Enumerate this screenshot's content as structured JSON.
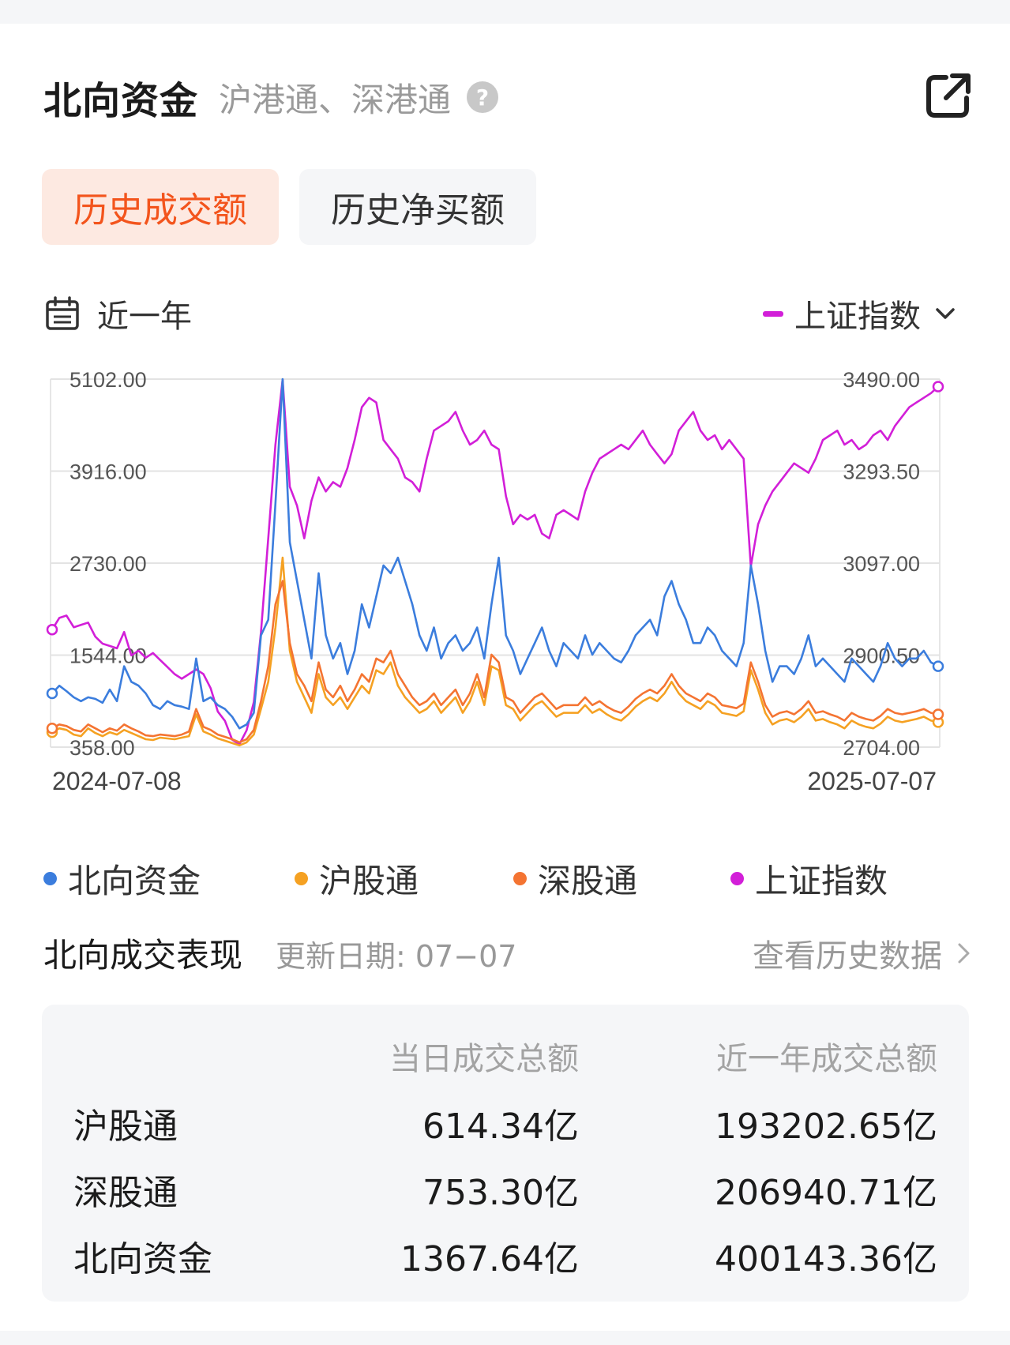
{
  "header": {
    "title": "北向资金",
    "subtitle": "沪港通、深港通",
    "help_icon": "question-circle-icon",
    "share_icon": "external-link-icon"
  },
  "tabs": [
    {
      "label": "历史成交额",
      "active": true
    },
    {
      "label": "历史净买额",
      "active": false
    }
  ],
  "filters": {
    "range_icon": "calendar-icon",
    "range_label": "近一年",
    "index_label": "上证指数",
    "index_color": "#d21fd8"
  },
  "chart_data": {
    "type": "line",
    "x_start_label": "2024-07-08",
    "x_end_label": "2025-07-07",
    "left_axis": {
      "ticks": [
        "5102.00",
        "3916.00",
        "2730.00",
        "1544.00",
        "358.00"
      ],
      "ylim": [
        358,
        5102
      ]
    },
    "right_axis": {
      "ticks": [
        "3490.00",
        "3293.50",
        "3097.00",
        "2900.50",
        "2704.00"
      ],
      "ylim": [
        2704,
        3490
      ]
    },
    "grid": true,
    "series": [
      {
        "name": "北向资金",
        "color": "#3b7ddd",
        "axis": "left",
        "values": [
          1050,
          1150,
          1080,
          1000,
          950,
          1000,
          980,
          930,
          1100,
          950,
          1400,
          1200,
          1150,
          1050,
          900,
          850,
          950,
          900,
          880,
          850,
          1500,
          950,
          1000,
          900,
          850,
          750,
          600,
          650,
          800,
          1800,
          2000,
          3500,
          5102,
          3000,
          2500,
          2000,
          1500,
          2600,
          1800,
          1500,
          1700,
          1300,
          1600,
          2200,
          1900,
          2300,
          2700,
          2600,
          2800,
          2500,
          2200,
          1800,
          1600,
          1900,
          1500,
          1700,
          1800,
          1600,
          1700,
          1900,
          1500,
          2200,
          2800,
          1800,
          1600,
          1300,
          1500,
          1700,
          1900,
          1600,
          1400,
          1700,
          1600,
          1500,
          1800,
          1550,
          1700,
          1600,
          1500,
          1450,
          1600,
          1800,
          1900,
          2000,
          1800,
          2300,
          2500,
          2200,
          2000,
          1700,
          1700,
          1900,
          1800,
          1600,
          1500,
          1400,
          1700,
          2700,
          2200,
          1600,
          1200,
          1400,
          1400,
          1300,
          1500,
          1800,
          1400,
          1500,
          1400,
          1300,
          1200,
          1500,
          1400,
          1300,
          1200,
          1400,
          1700,
          1500,
          1400,
          1500,
          1500,
          1600,
          1450,
          1400
        ]
      },
      {
        "name": "沪股通",
        "color": "#f5a122",
        "axis": "left",
        "values": [
          550,
          600,
          580,
          520,
          500,
          600,
          540,
          500,
          550,
          520,
          580,
          540,
          500,
          460,
          450,
          480,
          470,
          460,
          480,
          500,
          780,
          560,
          520,
          470,
          440,
          410,
          380,
          420,
          520,
          850,
          1200,
          1900,
          2800,
          1600,
          1200,
          1000,
          800,
          1300,
          1000,
          900,
          1000,
          850,
          1000,
          1150,
          1050,
          1350,
          1300,
          1450,
          1150,
          1000,
          900,
          800,
          850,
          950,
          800,
          900,
          1000,
          800,
          950,
          1200,
          900,
          1400,
          1350,
          900,
          850,
          700,
          800,
          900,
          950,
          850,
          750,
          800,
          800,
          800,
          900,
          800,
          850,
          780,
          730,
          700,
          780,
          880,
          950,
          1000,
          950,
          1050,
          1200,
          1050,
          950,
          900,
          850,
          950,
          900,
          800,
          780,
          760,
          820,
          1350,
          1100,
          800,
          650,
          700,
          720,
          680,
          750,
          850,
          700,
          720,
          680,
          650,
          600,
          700,
          650,
          620,
          600,
          660,
          750,
          700,
          680,
          700,
          720,
          750,
          700,
          680
        ]
      },
      {
        "name": "深股通",
        "color": "#f47432",
        "axis": "left",
        "values": [
          600,
          650,
          630,
          580,
          560,
          650,
          600,
          550,
          600,
          570,
          650,
          600,
          560,
          510,
          500,
          520,
          510,
          500,
          520,
          560,
          850,
          620,
          580,
          520,
          490,
          460,
          420,
          460,
          580,
          950,
          1400,
          2200,
          2500,
          1700,
          1300,
          1150,
          950,
          1450,
          1100,
          1000,
          1150,
          950,
          1100,
          1300,
          1200,
          1500,
          1450,
          1600,
          1300,
          1150,
          1000,
          900,
          950,
          1050,
          900,
          1000,
          1100,
          900,
          1050,
          1300,
          1000,
          1550,
          1450,
          1000,
          950,
          800,
          900,
          1000,
          1050,
          950,
          850,
          900,
          900,
          900,
          1000,
          900,
          950,
          880,
          830,
          800,
          880,
          980,
          1050,
          1100,
          1050,
          1150,
          1300,
          1150,
          1050,
          1000,
          950,
          1050,
          1000,
          900,
          880,
          860,
          920,
          1450,
          1200,
          900,
          750,
          800,
          820,
          780,
          850,
          950,
          800,
          820,
          780,
          750,
          700,
          800,
          750,
          720,
          700,
          760,
          850,
          800,
          780,
          800,
          820,
          850,
          800,
          780
        ]
      },
      {
        "name": "上证指数",
        "color": "#d21fd8",
        "axis": "right",
        "values": [
          2955,
          2980,
          2985,
          2960,
          2965,
          2970,
          2940,
          2925,
          2920,
          2915,
          2950,
          2900,
          2910,
          2895,
          2905,
          2890,
          2875,
          2860,
          2850,
          2860,
          2870,
          2860,
          2830,
          2780,
          2760,
          2720,
          2710,
          2740,
          2800,
          2950,
          3150,
          3350,
          3489,
          3260,
          3220,
          3150,
          3230,
          3280,
          3250,
          3270,
          3260,
          3300,
          3360,
          3430,
          3450,
          3440,
          3360,
          3340,
          3320,
          3280,
          3270,
          3250,
          3320,
          3380,
          3390,
          3400,
          3420,
          3380,
          3350,
          3360,
          3380,
          3350,
          3340,
          3240,
          3180,
          3200,
          3190,
          3200,
          3160,
          3150,
          3200,
          3210,
          3200,
          3190,
          3250,
          3290,
          3320,
          3330,
          3340,
          3350,
          3340,
          3360,
          3380,
          3350,
          3330,
          3310,
          3330,
          3380,
          3400,
          3420,
          3380,
          3360,
          3370,
          3340,
          3360,
          3340,
          3320,
          3090,
          3180,
          3220,
          3250,
          3270,
          3290,
          3310,
          3300,
          3290,
          3320,
          3360,
          3370,
          3380,
          3350,
          3360,
          3340,
          3350,
          3370,
          3380,
          3360,
          3390,
          3410,
          3430,
          3440,
          3450,
          3460,
          3474
        ]
      }
    ]
  },
  "legend": [
    {
      "label": "北向资金",
      "color": "#3b7ddd"
    },
    {
      "label": "沪股通",
      "color": "#f5a122"
    },
    {
      "label": "深股通",
      "color": "#f47432"
    },
    {
      "label": "上证指数",
      "color": "#d21fd8"
    }
  ],
  "performance": {
    "title": "北向成交表现",
    "update_date": "更新日期: 07−07",
    "history_link": "查看历史数据",
    "columns": [
      "当日成交总额",
      "近一年成交总额"
    ],
    "rows": [
      {
        "label": "沪股通",
        "daily": "614.34亿",
        "yearly": "193202.65亿"
      },
      {
        "label": "深股通",
        "daily": "753.30亿",
        "yearly": "206940.71亿"
      },
      {
        "label": "北向资金",
        "daily": "1367.64亿",
        "yearly": "400143.36亿"
      }
    ]
  }
}
